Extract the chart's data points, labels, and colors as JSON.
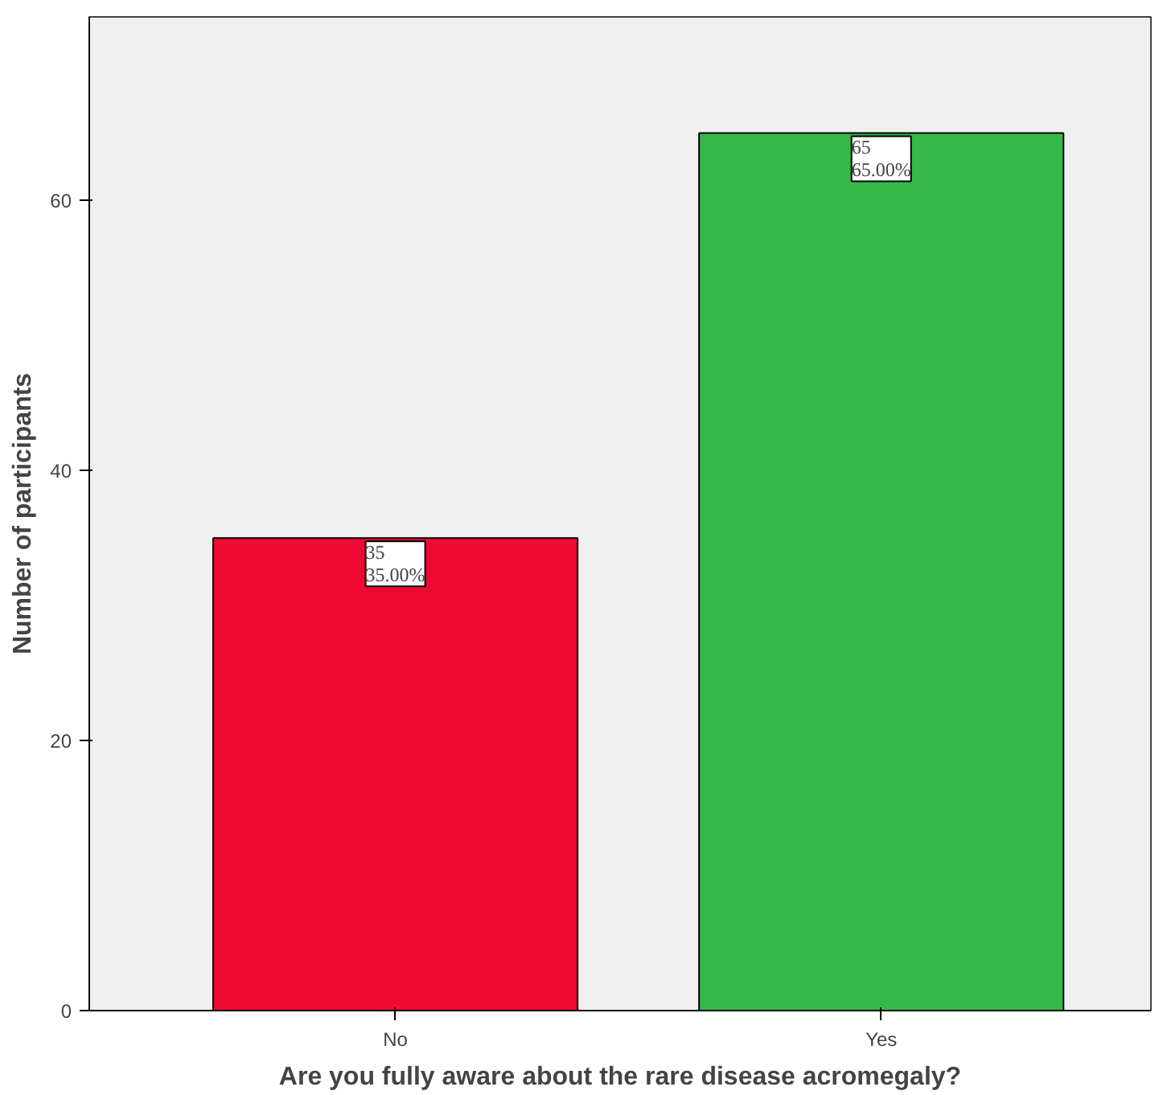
{
  "chart_data": {
    "type": "bar",
    "xlabel": "Are you fully aware about the rare disease acromegaly?",
    "ylabel": "Number of participants",
    "categories": [
      "No",
      "Yes"
    ],
    "values": [
      35,
      65
    ],
    "colors": [
      "#ee0a33",
      "#35b84a"
    ],
    "value_labels": [
      "35\n35.00%",
      "65\n65.00%"
    ],
    "ylim": [
      0,
      73.6
    ],
    "yticks": [
      0,
      20,
      40,
      60
    ],
    "grid": false
  }
}
